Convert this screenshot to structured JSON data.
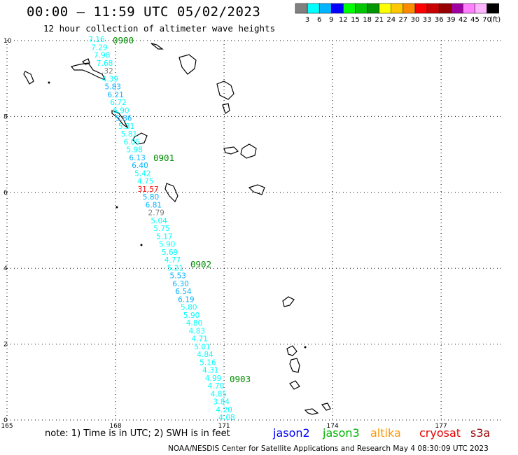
{
  "title": "00:00 – 11:59 UTC 05/02/2023",
  "subtitle": "12 hour collection of altimeter wave heights",
  "colorbar": {
    "colors": [
      "#808080",
      "#00ffff",
      "#00b4ff",
      "#0000ff",
      "#00ff00",
      "#00c800",
      "#009600",
      "#ffff00",
      "#ffc800",
      "#ff8c00",
      "#ff0000",
      "#c80000",
      "#960000",
      "#a000a0",
      "#ff80ff",
      "#ffb4ff",
      "#000000"
    ],
    "labels": [
      "3",
      "6",
      "9",
      "12",
      "15",
      "18",
      "21",
      "24",
      "27",
      "30",
      "33",
      "36",
      "39",
      "42",
      "45",
      "70",
      "(ft)"
    ]
  },
  "axes": {
    "x_ticks": [
      "165",
      "168",
      "171",
      "174",
      "177"
    ],
    "y_ticks": [
      "10",
      "8",
      "6",
      "4",
      "2",
      "0"
    ]
  },
  "track_times": [
    "0900",
    "0901",
    "0902",
    "0903"
  ],
  "track_points": [
    {
      "v": "7.16",
      "c": "#00ffff"
    },
    {
      "v": "7.29",
      "c": "#00ffff"
    },
    {
      "v": "7.98",
      "c": "#00ffff"
    },
    {
      "v": "7.68",
      "c": "#00ffff"
    },
    {
      "v": ".32",
      "c": "#808080"
    },
    {
      "v": "4.39",
      "c": "#00ffff"
    },
    {
      "v": "5.83",
      "c": "#00b4ff"
    },
    {
      "v": "6.21",
      "c": "#00b4ff"
    },
    {
      "v": "6.72",
      "c": "#00ffff"
    },
    {
      "v": "6.90",
      "c": "#00ffff"
    },
    {
      "v": "5.86",
      "c": "#00b4ff"
    },
    {
      "v": "5.31",
      "c": "#00ffff"
    },
    {
      "v": "5.81",
      "c": "#00ffff"
    },
    {
      "v": "6.05",
      "c": "#00ffff"
    },
    {
      "v": "5.98",
      "c": "#00ffff"
    },
    {
      "v": "6.13",
      "c": "#00b4ff"
    },
    {
      "v": "6.40",
      "c": "#00b4ff"
    },
    {
      "v": "5.42",
      "c": "#00ffff"
    },
    {
      "v": "4.75",
      "c": "#00ffff"
    },
    {
      "v": "31.57",
      "c": "#ff0000"
    },
    {
      "v": "5.80",
      "c": "#00b4ff"
    },
    {
      "v": "6.81",
      "c": "#00b4ff"
    },
    {
      "v": "2.79",
      "c": "#808080"
    },
    {
      "v": "5.04",
      "c": "#00ffff"
    },
    {
      "v": "5.75",
      "c": "#00ffff"
    },
    {
      "v": "5.17",
      "c": "#00ffff"
    },
    {
      "v": "5.90",
      "c": "#00ffff"
    },
    {
      "v": "5.69",
      "c": "#00ffff"
    },
    {
      "v": "4.77",
      "c": "#00ffff"
    },
    {
      "v": "5.21",
      "c": "#00ffff"
    },
    {
      "v": "5.53",
      "c": "#00b4ff"
    },
    {
      "v": "6.30",
      "c": "#00b4ff"
    },
    {
      "v": "6.54",
      "c": "#00b4ff"
    },
    {
      "v": "6.19",
      "c": "#00b4ff"
    },
    {
      "v": "5.80",
      "c": "#00ffff"
    },
    {
      "v": "5.90",
      "c": "#00ffff"
    },
    {
      "v": "4.80",
      "c": "#00ffff"
    },
    {
      "v": "4.83",
      "c": "#00ffff"
    },
    {
      "v": "4.71",
      "c": "#00ffff"
    },
    {
      "v": "5.01",
      "c": "#00ffff"
    },
    {
      "v": "4.84",
      "c": "#00ffff"
    },
    {
      "v": "5.16",
      "c": "#00ffff"
    },
    {
      "v": "4.31",
      "c": "#00ffff"
    },
    {
      "v": "4.99",
      "c": "#00ffff"
    },
    {
      "v": "4.70",
      "c": "#00ffff"
    },
    {
      "v": "4.85",
      "c": "#00ffff"
    },
    {
      "v": "3.84",
      "c": "#00ffff"
    },
    {
      "v": "4.20",
      "c": "#00ffff"
    },
    {
      "v": "4.08",
      "c": "#00ffff"
    }
  ],
  "note": "note: 1) Time is in UTC; 2) SWH is in feet",
  "satellites": [
    {
      "name": "jason2",
      "color": "#0000ff"
    },
    {
      "name": "jason3",
      "color": "#00b400"
    },
    {
      "name": "altika",
      "color": "#ff9600"
    },
    {
      "name": "cryosat",
      "color": "#e60000"
    },
    {
      "name": "s3a",
      "color": "#960000"
    }
  ],
  "credit": "NOAA/NESDIS Center for Satellite Applications and Research   May  4 08:30:09 UTC 2023"
}
